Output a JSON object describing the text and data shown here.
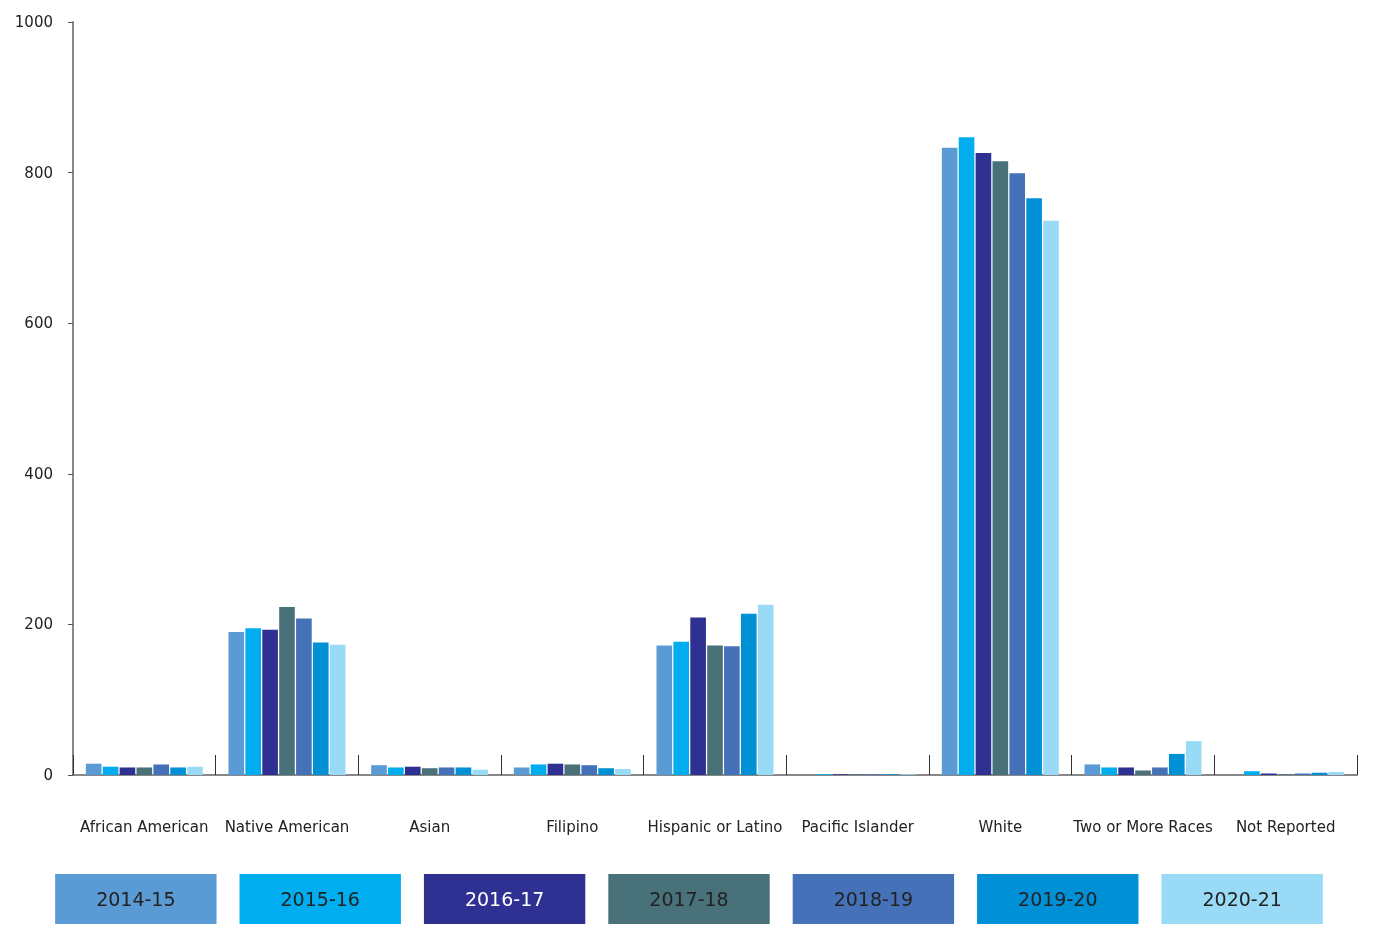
{
  "chart_data": {
    "type": "bar",
    "categories": [
      "African American",
      "Native American",
      "Asian",
      "Filipino",
      "Hispanic or Latino",
      "Pacific Islander",
      "White",
      "Two or More Races",
      "Not Reported"
    ],
    "series": [
      {
        "name": "2014-15",
        "color": "#5b9bd5",
        "values": [
          15,
          190,
          13,
          10,
          172,
          0,
          833,
          14,
          0
        ]
      },
      {
        "name": "2015-16",
        "color": "#00adef",
        "values": [
          11,
          195,
          10,
          14,
          177,
          1,
          847,
          10,
          5
        ]
      },
      {
        "name": "2016-17",
        "color": "#2e3192",
        "values": [
          10,
          193,
          11,
          15,
          209,
          1,
          826,
          10,
          2
        ]
      },
      {
        "name": "2017-18",
        "color": "#48717a",
        "values": [
          10,
          223,
          9,
          14,
          172,
          1,
          815,
          6,
          1
        ]
      },
      {
        "name": "2018-19",
        "color": "#4571b9",
        "values": [
          14,
          208,
          10,
          13,
          171,
          1,
          799,
          10,
          2
        ]
      },
      {
        "name": "2019-20",
        "color": "#0090d6",
        "values": [
          10,
          176,
          10,
          9,
          214,
          1,
          766,
          28,
          3
        ]
      },
      {
        "name": "2020-21",
        "color": "#99daf6",
        "values": [
          11,
          173,
          7,
          8,
          226,
          1,
          736,
          45,
          4
        ]
      }
    ],
    "ylim": [
      0,
      1000
    ],
    "yticks": [
      0,
      200,
      400,
      600,
      800,
      1000
    ],
    "grid": false,
    "legend": "bottom"
  }
}
